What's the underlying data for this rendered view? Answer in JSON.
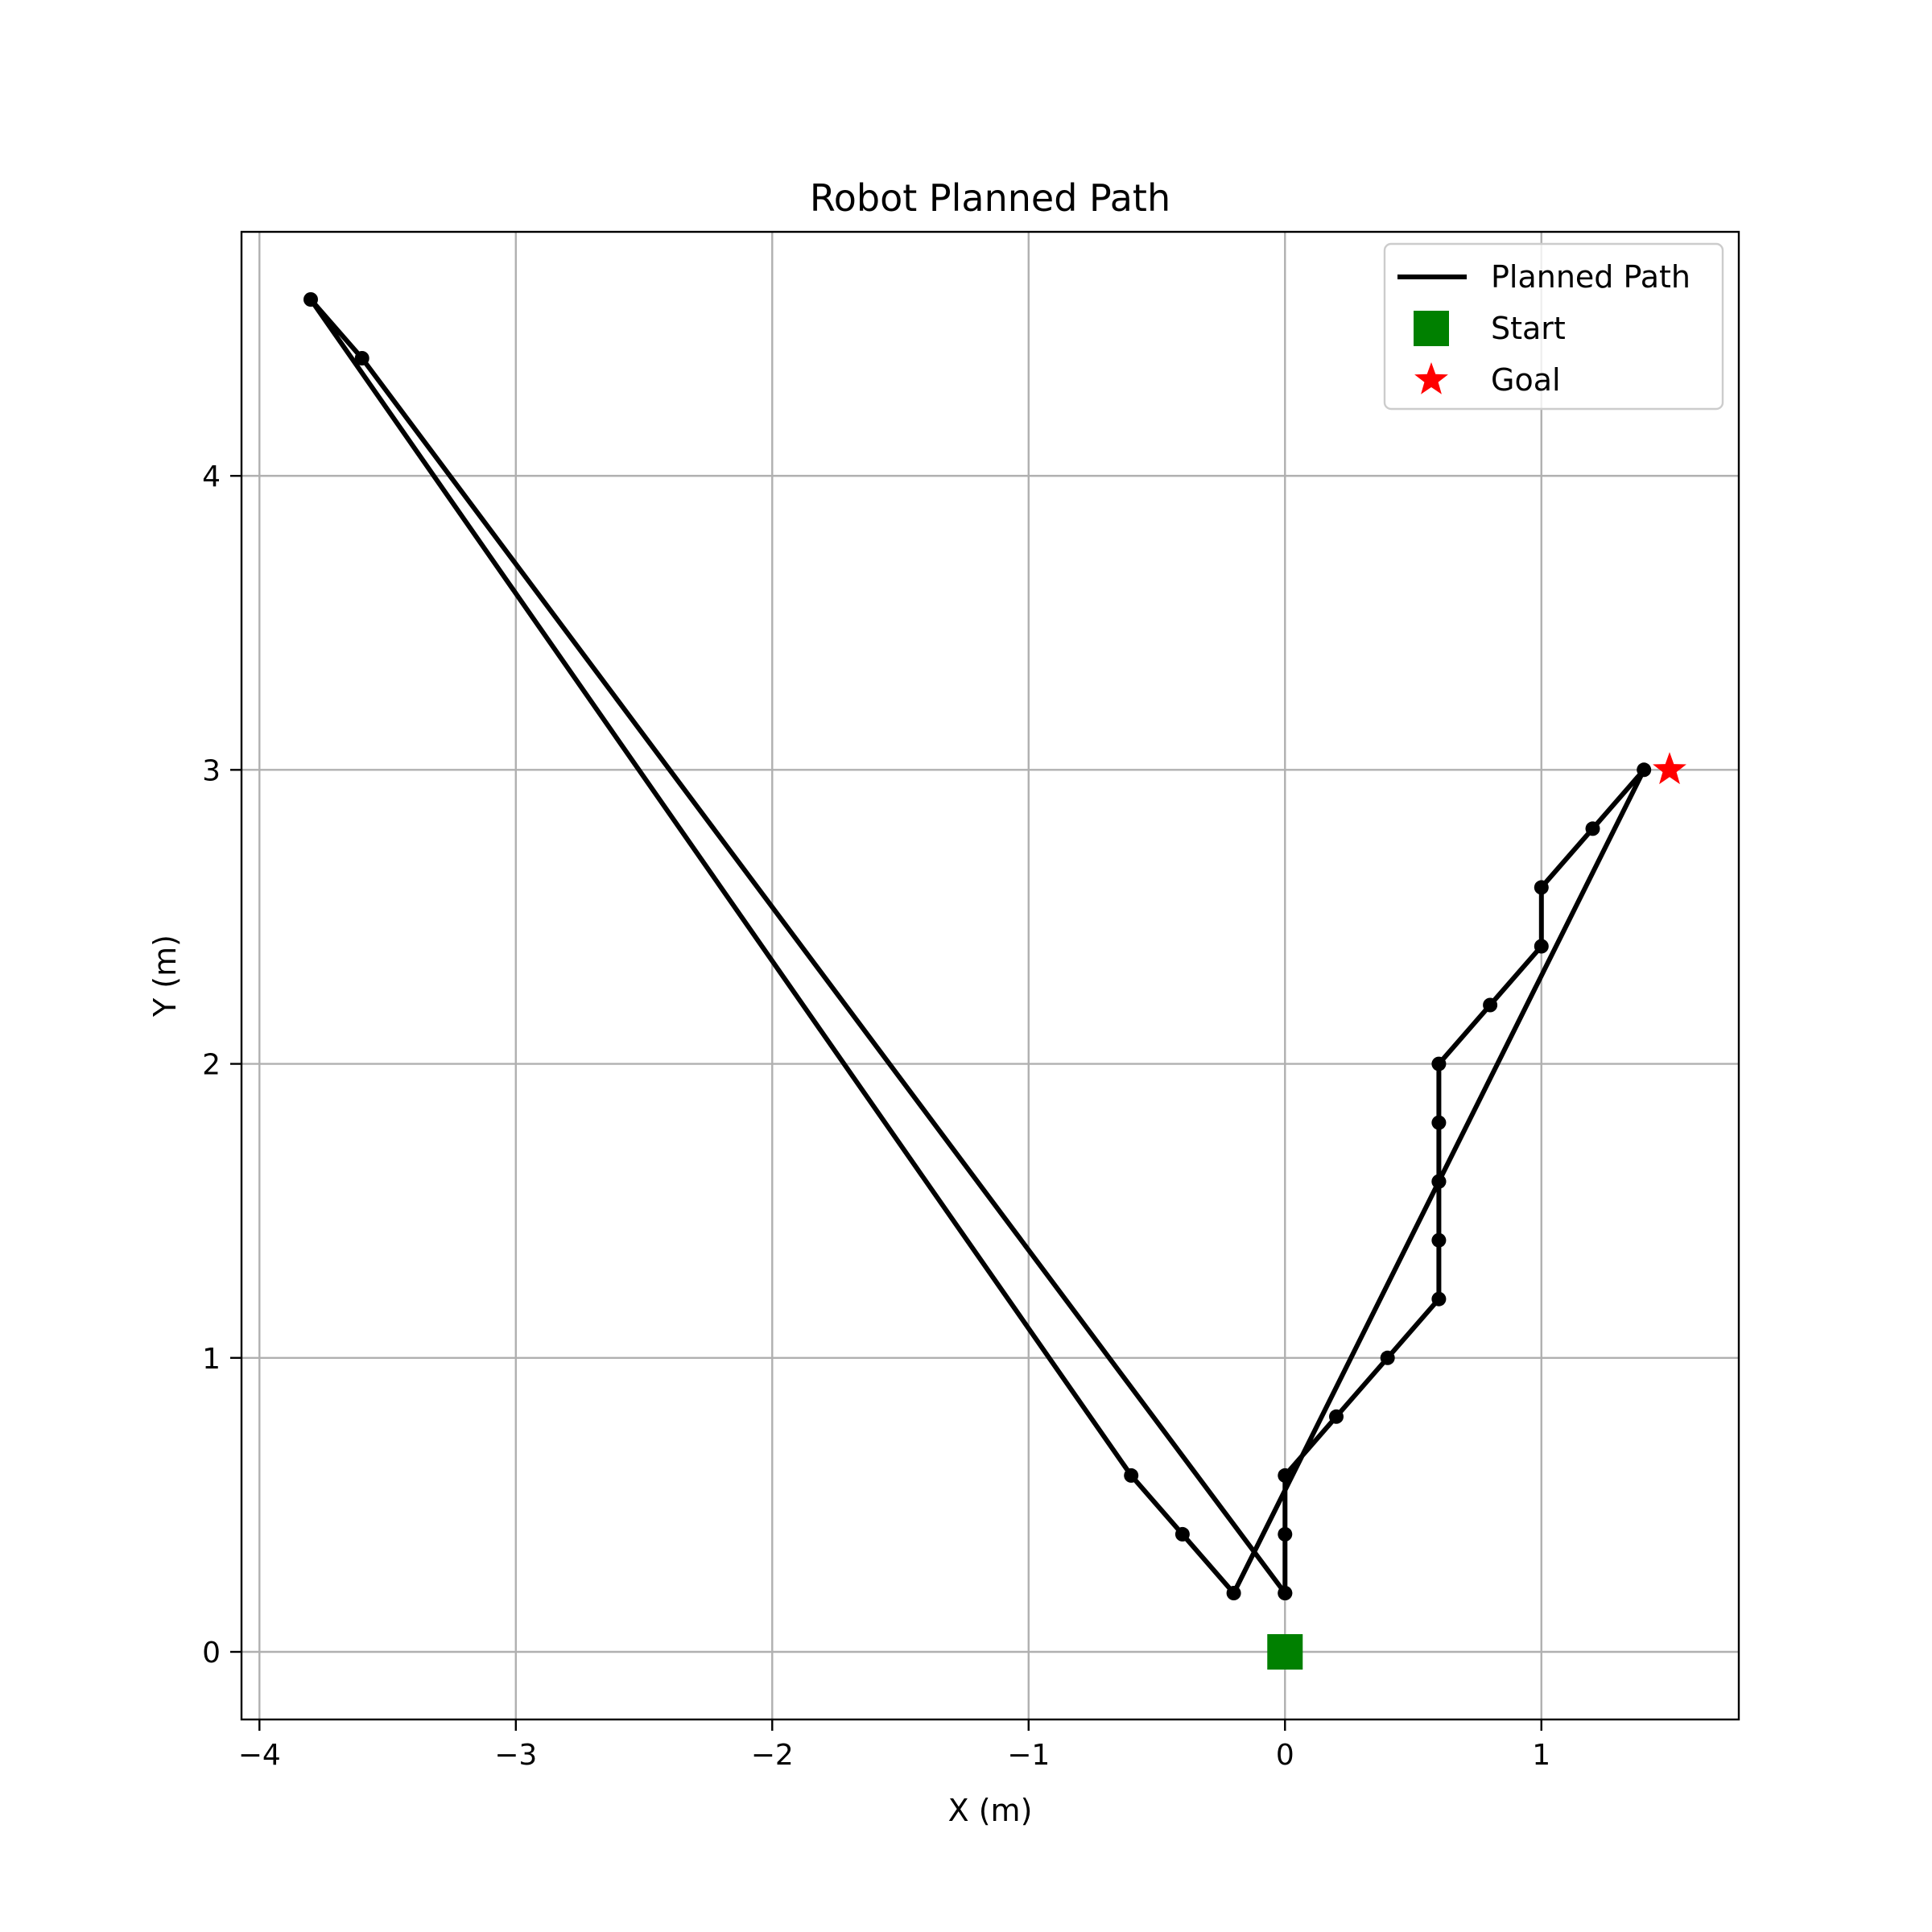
{
  "chart_data": {
    "type": "line",
    "title": "Robot Planned Path",
    "xlabel": "X (m)",
    "ylabel": "Y (m)",
    "xlim": [
      -4.07,
      1.77
    ],
    "ylim": [
      -0.23,
      4.83
    ],
    "grid": true,
    "legend_position": "top-right",
    "x_ticks": [
      -4,
      -3,
      -2,
      -1,
      0,
      1
    ],
    "x_tick_labels": [
      "−4",
      "−3",
      "−2",
      "−1",
      "0",
      "1"
    ],
    "y_ticks": [
      0,
      1,
      2,
      3,
      4
    ],
    "y_tick_labels": [
      "0",
      "1",
      "2",
      "3",
      "4"
    ],
    "series": [
      {
        "name": "Planned Path",
        "color": "#000000",
        "marker": "circle",
        "x": [
          0.0,
          0.0,
          0.0,
          0.2,
          0.4,
          0.6,
          0.6,
          0.6,
          0.6,
          0.6,
          0.8,
          1.0,
          1.0,
          1.2,
          1.4,
          0.6,
          -0.2,
          -0.4,
          -0.6,
          -3.8,
          -3.6,
          0.0
        ],
        "y": [
          0.2,
          0.4,
          0.6,
          0.8,
          1.0,
          1.2,
          1.4,
          1.6,
          1.8,
          2.0,
          2.2,
          2.4,
          2.6,
          2.8,
          3.0,
          1.6,
          0.2,
          0.4,
          0.6,
          4.6,
          4.4,
          0.2
        ]
      }
    ],
    "start": {
      "name": "Start",
      "x": 0.0,
      "y": 0.0,
      "color": "#008000",
      "marker": "square"
    },
    "goal": {
      "name": "Goal",
      "x": 1.5,
      "y": 3.0,
      "color": "#ff0000",
      "marker": "star"
    }
  }
}
